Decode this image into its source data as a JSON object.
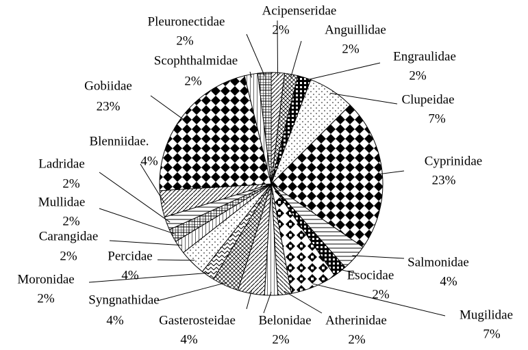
{
  "chart_data": {
    "type": "pie",
    "categories": [
      "Acipenseridae",
      "Anguillidae",
      "Engraulidae",
      "Clupeidae",
      "Cyprinidae",
      "Salmonidae",
      "Esocidae",
      "Mugilidae",
      "Atherinidae",
      "Belonidae",
      "Gasterosteidae",
      "Syngnathidae",
      "Moronidae",
      "Percidae",
      "Carangidae",
      "Mullidae",
      "Ladridae",
      "Blenniidae.",
      "Gobiidae",
      "Scophthalmidae",
      "Pleuronectidae"
    ],
    "values": [
      2,
      2,
      2,
      7,
      23,
      4,
      2,
      7,
      2,
      2,
      4,
      4,
      2,
      4,
      2,
      2,
      2,
      4,
      23,
      2,
      2
    ],
    "value_labels": [
      "2%",
      "2%",
      "2%",
      "7%",
      "23%",
      "4%",
      "2%",
      "7%",
      "2%",
      "2%",
      "4%",
      "4%",
      "2%",
      "4%",
      "2%",
      "2%",
      "2%",
      "4%",
      "23%",
      "2%",
      "2%"
    ]
  }
}
